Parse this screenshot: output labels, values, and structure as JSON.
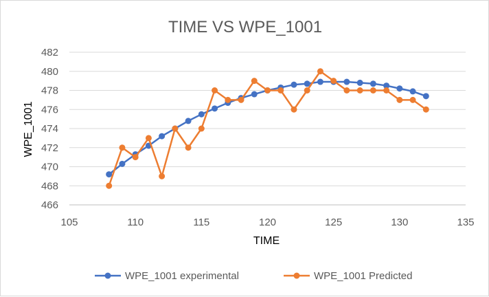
{
  "chart_data": {
    "type": "scatter",
    "title": "TIME VS WPE_1001",
    "xlabel": "TIME",
    "ylabel": "WPE_1001",
    "xlim": [
      105,
      135
    ],
    "ylim": [
      466,
      482
    ],
    "x_ticks": [
      105,
      110,
      115,
      120,
      125,
      130,
      135
    ],
    "y_ticks": [
      466,
      468,
      470,
      472,
      474,
      476,
      478,
      480,
      482
    ],
    "grid": "horizontal",
    "legend_position": "bottom",
    "series": [
      {
        "name": "WPE_1001 experimental",
        "color": "#4472c4",
        "x": [
          108,
          109,
          110,
          111,
          112,
          113,
          114,
          115,
          116,
          117,
          118,
          119,
          120,
          121,
          122,
          123,
          124,
          125,
          126,
          127,
          128,
          129,
          130,
          131,
          132
        ],
        "y": [
          469.2,
          470.3,
          471.3,
          472.2,
          473.2,
          474.0,
          474.8,
          475.5,
          476.1,
          476.7,
          477.2,
          477.6,
          478.0,
          478.3,
          478.6,
          478.7,
          478.9,
          478.9,
          478.9,
          478.8,
          478.7,
          478.5,
          478.2,
          477.9,
          477.4
        ]
      },
      {
        "name": "WPE_1001 Predicted",
        "color": "#ed7d31",
        "x": [
          108,
          109,
          110,
          111,
          112,
          113,
          114,
          115,
          116,
          117,
          118,
          119,
          120,
          121,
          122,
          123,
          124,
          125,
          126,
          127,
          128,
          129,
          130,
          131,
          132
        ],
        "y": [
          468,
          472,
          471,
          473,
          469,
          474,
          472,
          474,
          478,
          477,
          477,
          479,
          478,
          478,
          476,
          478,
          480,
          479,
          478,
          478,
          478,
          478,
          477,
          477,
          476
        ]
      }
    ]
  }
}
